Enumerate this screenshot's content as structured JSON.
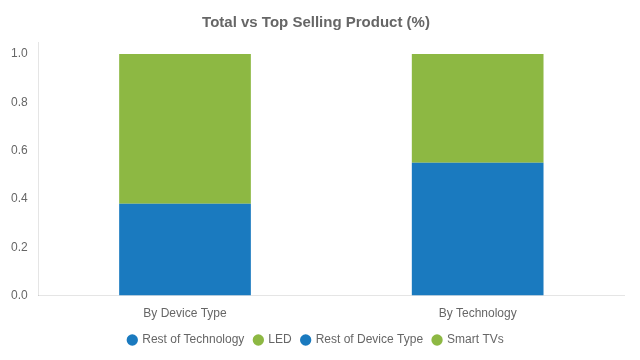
{
  "chart_data": {
    "type": "bar",
    "title": "Total vs Top Selling Product (%)",
    "categories": [
      "By Device Type",
      "By Technology"
    ],
    "series": [
      {
        "name": "Rest of Technology",
        "color": "#1a7abf",
        "values": [
          null,
          0.55
        ]
      },
      {
        "name": "LED",
        "color": "#8db843",
        "values": [
          null,
          0.45
        ]
      },
      {
        "name": "Rest of Device Type",
        "color": "#1a7abf",
        "values": [
          0.38,
          null
        ]
      },
      {
        "name": "Smart TVs",
        "color": "#8db843",
        "values": [
          0.62,
          null
        ]
      }
    ],
    "stacked": true,
    "ylim": [
      0,
      1.05
    ],
    "yticks": [
      {
        "value": 0,
        "label": "0.0"
      },
      0.2,
      0.4,
      0.6,
      0.8,
      {
        "value": 1,
        "label": "1.0"
      }
    ],
    "grid": false,
    "legend": "bottom"
  }
}
